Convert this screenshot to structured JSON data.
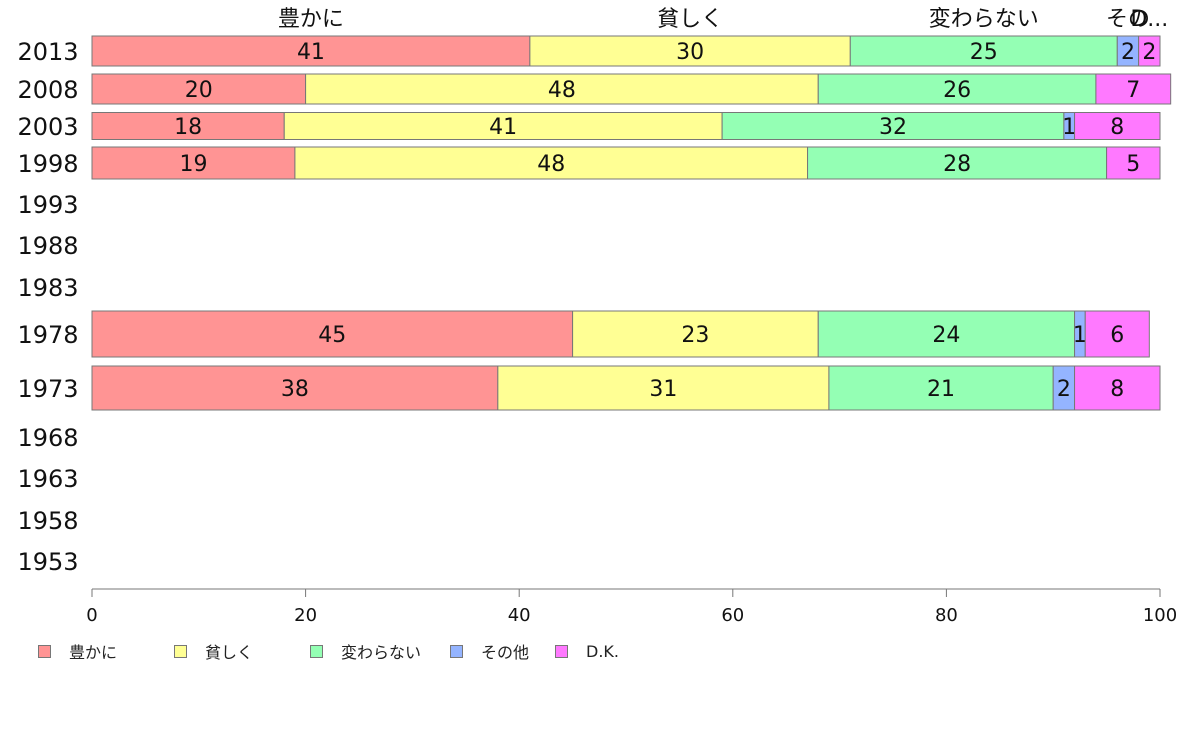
{
  "chart_data": {
    "type": "bar",
    "orientation": "horizontal",
    "stacked": true,
    "categories": [
      "2013",
      "2008",
      "2003",
      "1998",
      "1993",
      "1988",
      "1983",
      "1978",
      "1973",
      "1968",
      "1963",
      "1958",
      "1953"
    ],
    "series": [
      {
        "name": "豊かに",
        "color": "#ff9494",
        "values": [
          41,
          20,
          18,
          19,
          null,
          null,
          null,
          45,
          38,
          null,
          null,
          null,
          null
        ]
      },
      {
        "name": "貧しく",
        "color": "#ffff94",
        "values": [
          30,
          48,
          41,
          48,
          null,
          null,
          null,
          23,
          31,
          null,
          null,
          null,
          null
        ]
      },
      {
        "name": "変わらない",
        "color": "#94ffb4",
        "values": [
          25,
          26,
          32,
          28,
          null,
          null,
          null,
          24,
          21,
          null,
          null,
          null,
          null
        ]
      },
      {
        "name": "その他",
        "color": "#94b4ff",
        "values": [
          2,
          null,
          1,
          null,
          null,
          null,
          null,
          1,
          2,
          null,
          null,
          null,
          null
        ]
      },
      {
        "name": "D.K.",
        "color": "#ff79ff",
        "values": [
          2,
          7,
          8,
          5,
          null,
          null,
          null,
          6,
          8,
          null,
          null,
          null,
          null
        ]
      }
    ],
    "top_labels": [
      "豊かに",
      "貧しく",
      "変わらない",
      "その",
      "D..."
    ],
    "xlim": [
      0,
      100
    ],
    "xticks": [
      "0",
      "20",
      "40",
      "60",
      "80",
      "100"
    ],
    "grid": false,
    "legend_position": "bottom-left"
  }
}
